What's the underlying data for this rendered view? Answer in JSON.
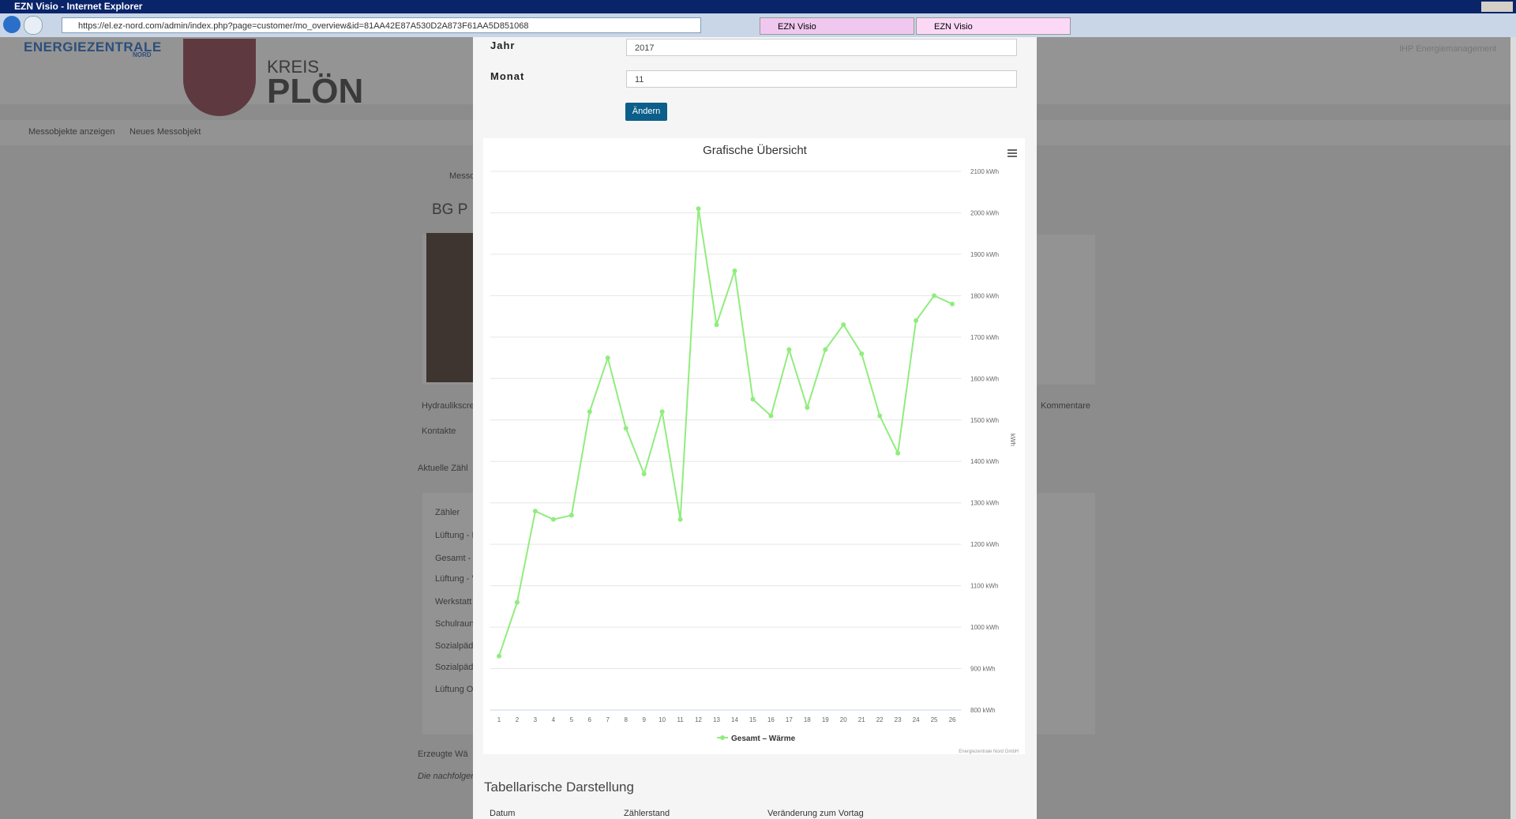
{
  "browser": {
    "window_title": "EZN Visio - Internet Explorer",
    "url": "https://el.ez-nord.com/admin/index.php?page=customer/mo_overview&id=81AA42E87A530D2A873F61AA5D851068",
    "tabs": [
      "EZN Visio",
      "EZN Visio"
    ]
  },
  "background": {
    "logo": "ENERGIEZENTRALE",
    "logo_sub": "NORD",
    "kreis": "KREIS",
    "ploen": "PLÖN",
    "nav": [
      "Messobjekte anzeigen",
      "Neues Messobjekt"
    ],
    "user": "IHP Energiemanagement",
    "fragments": [
      "Messo",
      "BG P",
      "Hydraulikscre",
      "Kontakte",
      "Aktuelle Zähl",
      "Zähler",
      "Lüftung - E",
      "Gesamt - ",
      "Lüftung - V",
      "Werkstatt",
      "Schulraun",
      "Sozialpäd",
      "Sozialpäd",
      "Lüftung O",
      "Erzeugte Wä",
      "Die nachfolgen",
      "Kommentare"
    ]
  },
  "form": {
    "year_label": "Jahr",
    "year_value": "2017",
    "month_label": "Monat",
    "month_value": "11",
    "button": "Ändern"
  },
  "chart_data": {
    "type": "line",
    "title": "Grafische Übersicht",
    "y_label": "kWh",
    "credits": "Energiezentrale Nord GmbH",
    "categories": [
      "1",
      "2",
      "3",
      "4",
      "5",
      "6",
      "7",
      "8",
      "9",
      "10",
      "11",
      "12",
      "13",
      "14",
      "15",
      "16",
      "17",
      "18",
      "19",
      "20",
      "21",
      "22",
      "23",
      "24",
      "25",
      "26"
    ],
    "series": [
      {
        "name": "Gesamt – Wärme",
        "color": "#90ed7d",
        "values": [
          930,
          1060,
          1280,
          1260,
          1270,
          1520,
          1650,
          1480,
          1370,
          1520,
          1260,
          2010,
          1730,
          1860,
          1550,
          1510,
          1670,
          1530,
          1670,
          1730,
          1660,
          1510,
          1420,
          1740,
          1800,
          1780
        ]
      }
    ],
    "ylim": [
      800,
      2100
    ],
    "yticks": [
      {
        "value": 800,
        "label": "800 kWh"
      },
      {
        "value": 900,
        "label": "900 kWh"
      },
      {
        "value": 1000,
        "label": "1000 kWh"
      },
      {
        "value": 1100,
        "label": "1100 kWh"
      },
      {
        "value": 1200,
        "label": "1200 kWh"
      },
      {
        "value": 1300,
        "label": "1300 kWh"
      },
      {
        "value": 1400,
        "label": "1400 kWh"
      },
      {
        "value": 1500,
        "label": "1500 kWh"
      },
      {
        "value": 1600,
        "label": "1600 kWh"
      },
      {
        "value": 1700,
        "label": "1700 kWh"
      },
      {
        "value": 1800,
        "label": "1800 kWh"
      },
      {
        "value": 1900,
        "label": "1900 kWh"
      },
      {
        "value": 2000,
        "label": "2000 kWh"
      },
      {
        "value": 2100,
        "label": "2100 kWh"
      }
    ],
    "grid": true,
    "legend": "bottom"
  },
  "table": {
    "title": "Tabellarische Darstellung",
    "headers": [
      "Datum",
      "Zählerstand",
      "Veränderung zum Vortag"
    ]
  }
}
